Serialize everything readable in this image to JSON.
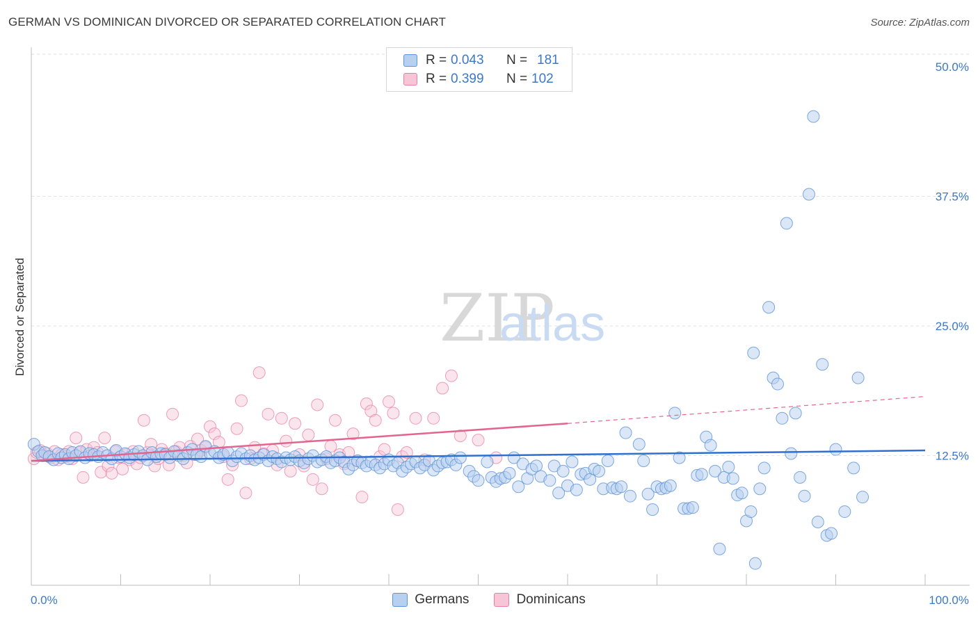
{
  "header": {
    "title": "GERMAN VS DOMINICAN DIVORCED OR SEPARATED CORRELATION CHART",
    "source": "Source: ZipAtlas.com"
  },
  "legend": {
    "rows": [
      {
        "r_label": "R =",
        "r_value": "0.043",
        "n_label": "N =",
        "n_value": "181"
      },
      {
        "r_label": "R =",
        "r_value": "0.399",
        "n_label": "N =",
        "n_value": "102"
      }
    ]
  },
  "watermark": {
    "zip": "ZIP",
    "atlas": "atlas"
  },
  "colors": {
    "german": "#5b93d8",
    "german_fill": "#b8d0f0",
    "dominican": "#e87fa3",
    "dominican_fill": "#f6c6d6",
    "german_line": "#2f6fcf",
    "dominican_line": "#e2648f"
  },
  "chart_data": {
    "type": "scatter",
    "title": "GERMAN VS DOMINICAN DIVORCED OR SEPARATED CORRELATION CHART",
    "xlabel": "",
    "ylabel": "Divorced or Separated",
    "x_tick_labels": [
      "0.0%",
      "100.0%"
    ],
    "y_tick_labels": [
      "12.5%",
      "25.0%",
      "37.5%",
      "50.0%"
    ],
    "xlim": [
      0,
      100
    ],
    "ylim": [
      0,
      50
    ],
    "grid": "horizontal dashed",
    "legend_position": "top-center",
    "series": [
      {
        "name": "Germans",
        "r": 0.043,
        "n": 181,
        "trend": {
          "x": [
            0,
            100
          ],
          "y": [
            12.0,
            13.0
          ]
        },
        "points": [
          [
            0.3,
            13.6
          ],
          [
            0.8,
            12.9
          ],
          [
            1.2,
            12.5
          ],
          [
            1.5,
            12.8
          ],
          [
            2,
            12.4
          ],
          [
            2.5,
            12.1
          ],
          [
            3,
            12.7
          ],
          [
            3.4,
            12.3
          ],
          [
            3.8,
            12.6
          ],
          [
            4.2,
            12.2
          ],
          [
            4.6,
            12.8
          ],
          [
            5,
            12.5
          ],
          [
            5.5,
            12.9
          ],
          [
            6,
            12.3
          ],
          [
            6.5,
            12.7
          ],
          [
            7,
            12.6
          ],
          [
            7.5,
            12.4
          ],
          [
            8,
            12.8
          ],
          [
            8.5,
            12.5
          ],
          [
            9,
            12.2
          ],
          [
            9.5,
            13.0
          ],
          [
            10,
            12.4
          ],
          [
            10.5,
            12.7
          ],
          [
            11,
            12.3
          ],
          [
            11.5,
            12.6
          ],
          [
            12,
            12.9
          ],
          [
            12.5,
            12.5
          ],
          [
            13,
            12.1
          ],
          [
            13.5,
            12.8
          ],
          [
            14,
            12.4
          ],
          [
            14.5,
            12.7
          ],
          [
            15,
            12.6
          ],
          [
            15.5,
            12.3
          ],
          [
            16,
            12.9
          ],
          [
            16.5,
            12.5
          ],
          [
            17,
            12.2
          ],
          [
            17.5,
            12.8
          ],
          [
            18,
            13.1
          ],
          [
            18.5,
            12.6
          ],
          [
            19,
            12.4
          ],
          [
            19.5,
            13.4
          ],
          [
            20,
            12.7
          ],
          [
            20.5,
            12.9
          ],
          [
            21,
            12.3
          ],
          [
            21.5,
            12.6
          ],
          [
            22,
            12.8
          ],
          [
            22.5,
            12.0
          ],
          [
            23,
            12.4
          ],
          [
            23.5,
            12.7
          ],
          [
            24,
            12.2
          ],
          [
            24.5,
            12.5
          ],
          [
            25,
            12.1
          ],
          [
            25.5,
            12.3
          ],
          [
            26,
            12.6
          ],
          [
            26.5,
            12.0
          ],
          [
            27,
            12.4
          ],
          [
            27.5,
            12.2
          ],
          [
            28,
            11.9
          ],
          [
            28.5,
            12.3
          ],
          [
            29,
            12.1
          ],
          [
            29.5,
            12.4
          ],
          [
            30,
            12.0
          ],
          [
            30.5,
            11.8
          ],
          [
            31,
            12.2
          ],
          [
            31.5,
            12.5
          ],
          [
            32,
            11.9
          ],
          [
            32.5,
            12.1
          ],
          [
            33,
            12.4
          ],
          [
            33.5,
            11.8
          ],
          [
            34,
            12.0
          ],
          [
            34.5,
            12.3
          ],
          [
            35,
            11.9
          ],
          [
            35.5,
            11.2
          ],
          [
            36,
            11.6
          ],
          [
            36.5,
            12.0
          ],
          [
            37,
            11.8
          ],
          [
            37.5,
            11.5
          ],
          [
            38,
            11.9
          ],
          [
            38.5,
            11.6
          ],
          [
            39,
            11.3
          ],
          [
            39.5,
            11.7
          ],
          [
            40,
            12.1
          ],
          [
            40.5,
            11.5
          ],
          [
            41,
            11.8
          ],
          [
            41.5,
            11.0
          ],
          [
            42,
            11.4
          ],
          [
            42.5,
            11.7
          ],
          [
            43,
            11.9
          ],
          [
            43.5,
            11.3
          ],
          [
            44,
            11.6
          ],
          [
            44.5,
            12.0
          ],
          [
            45,
            11.1
          ],
          [
            45.5,
            11.5
          ],
          [
            46,
            11.8
          ],
          [
            46.5,
            11.9
          ],
          [
            47,
            12.1
          ],
          [
            47.5,
            11.6
          ],
          [
            48,
            12.3
          ],
          [
            49,
            11.0
          ],
          [
            49.5,
            10.5
          ],
          [
            50,
            10.1
          ],
          [
            51,
            11.9
          ],
          [
            51.5,
            10.4
          ],
          [
            52,
            10.0
          ],
          [
            52.5,
            10.3
          ],
          [
            53,
            10.4
          ],
          [
            53.5,
            10.8
          ],
          [
            54,
            12.3
          ],
          [
            54.5,
            9.5
          ],
          [
            55,
            11.7
          ],
          [
            55.5,
            10.3
          ],
          [
            56,
            11.2
          ],
          [
            56.5,
            11.5
          ],
          [
            57,
            10.5
          ],
          [
            58,
            10.1
          ],
          [
            58.5,
            11.5
          ],
          [
            59,
            8.9
          ],
          [
            59.5,
            11.0
          ],
          [
            60,
            9.6
          ],
          [
            60.5,
            11.9
          ],
          [
            61,
            9.2
          ],
          [
            61.5,
            10.7
          ],
          [
            62,
            10.8
          ],
          [
            62.5,
            10.2
          ],
          [
            63,
            11.2
          ],
          [
            63.5,
            11.0
          ],
          [
            64,
            9.3
          ],
          [
            64.5,
            12.0
          ],
          [
            65,
            9.4
          ],
          [
            65.5,
            9.3
          ],
          [
            66,
            9.5
          ],
          [
            66.5,
            14.7
          ],
          [
            67,
            8.6
          ],
          [
            68,
            13.6
          ],
          [
            68.5,
            12.0
          ],
          [
            69,
            8.8
          ],
          [
            69.5,
            7.3
          ],
          [
            70,
            9.5
          ],
          [
            70.5,
            9.3
          ],
          [
            71,
            9.4
          ],
          [
            71.5,
            9.6
          ],
          [
            72,
            16.6
          ],
          [
            72.5,
            12.3
          ],
          [
            73,
            7.4
          ],
          [
            73.5,
            7.4
          ],
          [
            74,
            7.5
          ],
          [
            74.5,
            10.6
          ],
          [
            75,
            10.7
          ],
          [
            75.5,
            14.3
          ],
          [
            76,
            13.5
          ],
          [
            76.5,
            11.0
          ],
          [
            77,
            3.5
          ],
          [
            77.5,
            10.4
          ],
          [
            78,
            11.4
          ],
          [
            78.5,
            10.3
          ],
          [
            79,
            8.7
          ],
          [
            79.5,
            8.9
          ],
          [
            80,
            6.2
          ],
          [
            80.5,
            7.1
          ],
          [
            80.8,
            22.4
          ],
          [
            81,
            2.1
          ],
          [
            81.5,
            9.3
          ],
          [
            82,
            11.3
          ],
          [
            82.5,
            26.8
          ],
          [
            83,
            20.0
          ],
          [
            83.5,
            19.4
          ],
          [
            84,
            16.1
          ],
          [
            84.5,
            34.9
          ],
          [
            85,
            12.7
          ],
          [
            85.5,
            16.6
          ],
          [
            86,
            10.4
          ],
          [
            86.5,
            8.6
          ],
          [
            87,
            37.7
          ],
          [
            87.5,
            45.2
          ],
          [
            88,
            6.1
          ],
          [
            88.5,
            21.3
          ],
          [
            89,
            4.8
          ],
          [
            89.5,
            5.0
          ],
          [
            90,
            13.1
          ],
          [
            91,
            7.1
          ],
          [
            92,
            11.3
          ],
          [
            92.5,
            20.0
          ],
          [
            93,
            8.5
          ]
        ]
      },
      {
        "name": "Dominicans",
        "r": 0.399,
        "n": 102,
        "trend": {
          "x": [
            0,
            60
          ],
          "y": [
            12.0,
            15.6
          ],
          "dashed_to": {
            "x": 100,
            "y": 18.2
          }
        },
        "points": [
          [
            0.3,
            12.2
          ],
          [
            0.6,
            12.8
          ],
          [
            1,
            13.0
          ],
          [
            1.4,
            12.5
          ],
          [
            1.8,
            12.7
          ],
          [
            2.2,
            12.3
          ],
          [
            2.6,
            12.9
          ],
          [
            3,
            12.1
          ],
          [
            3.4,
            12.6
          ],
          [
            3.8,
            12.4
          ],
          [
            4.2,
            12.9
          ],
          [
            4.6,
            12.2
          ],
          [
            5,
            14.2
          ],
          [
            5.4,
            12.8
          ],
          [
            5.8,
            10.4
          ],
          [
            6.2,
            13.1
          ],
          [
            6.6,
            12.5
          ],
          [
            7,
            13.3
          ],
          [
            7.4,
            12.8
          ],
          [
            7.8,
            10.9
          ],
          [
            8.2,
            14.2
          ],
          [
            8.6,
            11.5
          ],
          [
            9,
            10.8
          ],
          [
            9.4,
            12.9
          ],
          [
            9.8,
            12.3
          ],
          [
            10.2,
            11.2
          ],
          [
            10.6,
            12.6
          ],
          [
            11,
            12.1
          ],
          [
            11.4,
            12.9
          ],
          [
            11.8,
            11.7
          ],
          [
            12.2,
            12.3
          ],
          [
            12.6,
            15.9
          ],
          [
            13,
            12.8
          ],
          [
            13.4,
            13.6
          ],
          [
            13.8,
            11.5
          ],
          [
            14.2,
            12.2
          ],
          [
            14.6,
            13.1
          ],
          [
            15,
            12.7
          ],
          [
            15.4,
            11.6
          ],
          [
            15.8,
            16.5
          ],
          [
            16.2,
            12.9
          ],
          [
            16.6,
            13.3
          ],
          [
            17,
            12.5
          ],
          [
            17.4,
            11.8
          ],
          [
            17.8,
            13.4
          ],
          [
            18.2,
            12.6
          ],
          [
            18.6,
            14.1
          ],
          [
            19,
            13.0
          ],
          [
            19.5,
            13.3
          ],
          [
            20,
            15.3
          ],
          [
            20.5,
            14.6
          ],
          [
            21,
            13.8
          ],
          [
            21.5,
            12.4
          ],
          [
            22,
            10.2
          ],
          [
            22.5,
            11.6
          ],
          [
            23,
            15.1
          ],
          [
            23.5,
            17.8
          ],
          [
            24,
            8.9
          ],
          [
            24.5,
            12.2
          ],
          [
            25,
            13.3
          ],
          [
            25.5,
            20.5
          ],
          [
            26,
            12.7
          ],
          [
            26.5,
            16.5
          ],
          [
            27,
            13.0
          ],
          [
            27.5,
            11.6
          ],
          [
            28,
            16.1
          ],
          [
            28.5,
            13.9
          ],
          [
            29,
            11.0
          ],
          [
            29.5,
            15.6
          ],
          [
            30,
            12.6
          ],
          [
            30.5,
            11.5
          ],
          [
            31,
            14.5
          ],
          [
            31.5,
            10.2
          ],
          [
            32,
            17.4
          ],
          [
            32.5,
            9.3
          ],
          [
            33,
            12.2
          ],
          [
            33.5,
            13.4
          ],
          [
            34,
            15.9
          ],
          [
            34.5,
            12.6
          ],
          [
            35,
            11.7
          ],
          [
            35.5,
            12.8
          ],
          [
            36,
            14.6
          ],
          [
            36.5,
            12.0
          ],
          [
            37,
            8.5
          ],
          [
            37.5,
            17.5
          ],
          [
            38,
            16.8
          ],
          [
            38.5,
            15.9
          ],
          [
            39,
            12.4
          ],
          [
            39.5,
            13.1
          ],
          [
            40,
            17.7
          ],
          [
            40.5,
            16.6
          ],
          [
            41,
            7.3
          ],
          [
            41.5,
            12.4
          ],
          [
            42,
            12.8
          ],
          [
            43,
            16.1
          ],
          [
            44,
            12.1
          ],
          [
            45,
            16.1
          ],
          [
            46,
            19.0
          ],
          [
            47,
            20.2
          ],
          [
            48,
            14.4
          ],
          [
            50,
            14.0
          ],
          [
            52,
            12.3
          ]
        ]
      }
    ]
  }
}
